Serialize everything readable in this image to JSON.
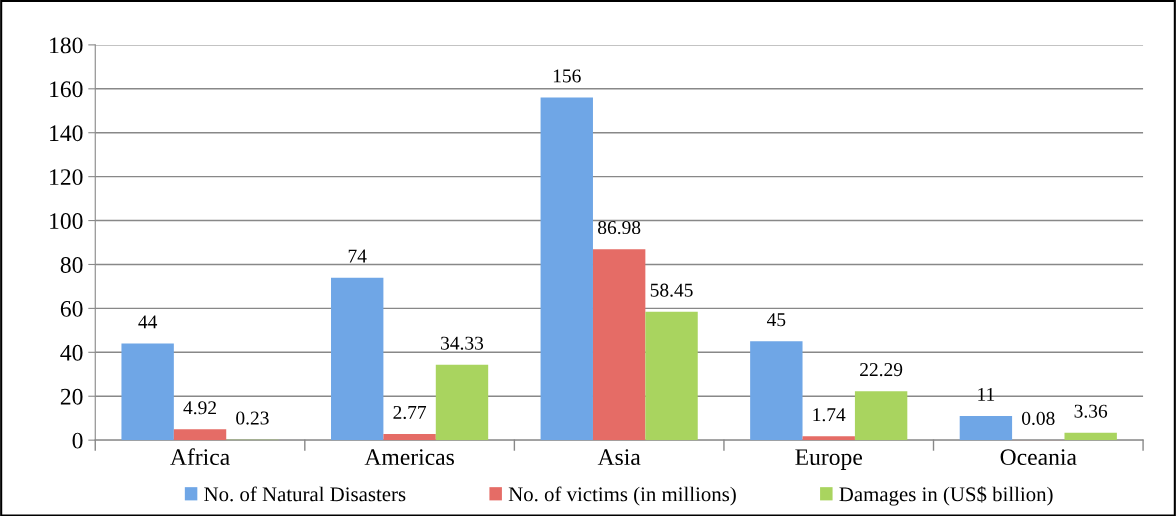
{
  "chart_data": {
    "type": "bar",
    "categories": [
      "Africa",
      "Americas",
      "Asia",
      "Europe",
      "Oceania"
    ],
    "series": [
      {
        "name": "No. of Natural Disasters",
        "color": "#6fa6e6",
        "values": [
          44,
          74,
          156,
          45,
          11
        ]
      },
      {
        "name": "No. of victims (in millions)",
        "color": "#e56c66",
        "values": [
          4.92,
          2.77,
          86.98,
          1.74,
          0.08
        ]
      },
      {
        "name": "Damages in (US$ billion)",
        "color": "#a9d45f",
        "values": [
          0.23,
          34.33,
          58.45,
          22.29,
          3.36
        ]
      }
    ],
    "ylim": [
      0,
      180
    ],
    "yticks": [
      0,
      20,
      40,
      60,
      80,
      100,
      120,
      140,
      160,
      180
    ],
    "grid": "y",
    "legend": "bottom",
    "data_labels": true
  }
}
